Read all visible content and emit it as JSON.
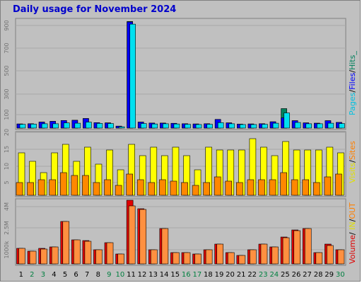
{
  "title": "Daily usage for November 2024",
  "chart_data": [
    {
      "type": "bar",
      "name": "hits-files-pages",
      "categories": [
        "1",
        "2",
        "3",
        "4",
        "5",
        "6",
        "7",
        "8",
        "9",
        "10",
        "11",
        "12",
        "13",
        "14",
        "15",
        "16",
        "17",
        "18",
        "19",
        "20",
        "21",
        "22",
        "23",
        "24",
        "25",
        "26",
        "27",
        "28",
        "29",
        "30"
      ],
      "weekend_days": [
        "2",
        "3",
        "9",
        "10",
        "16",
        "17",
        "23",
        "24",
        "30"
      ],
      "ylim": [
        0,
        1000
      ],
      "yticks": [
        "100",
        "300",
        "500",
        "700",
        "900"
      ],
      "legend": [
        "Pages",
        "Files",
        "Hits"
      ],
      "series": [
        {
          "name": "Hits",
          "color": "#00805c",
          "values": [
            38,
            40,
            55,
            62,
            70,
            72,
            88,
            50,
            48,
            18,
            985,
            55,
            46,
            46,
            44,
            40,
            38,
            40,
            80,
            48,
            36,
            38,
            40,
            58,
            180,
            68,
            48,
            45,
            68,
            52
          ]
        },
        {
          "name": "Files",
          "color": "#0000ff",
          "values": [
            38,
            40,
            55,
            62,
            70,
            72,
            88,
            50,
            48,
            18,
            980,
            55,
            46,
            46,
            44,
            40,
            38,
            40,
            80,
            48,
            36,
            38,
            40,
            58,
            95,
            68,
            48,
            45,
            68,
            52
          ]
        },
        {
          "name": "Pages",
          "color": "#00e0f0",
          "values": [
            35,
            37,
            40,
            40,
            48,
            45,
            55,
            43,
            42,
            12,
            960,
            42,
            38,
            40,
            38,
            35,
            33,
            35,
            50,
            40,
            33,
            33,
            35,
            45,
            140,
            52,
            40,
            40,
            45,
            42
          ]
        }
      ]
    },
    {
      "type": "bar",
      "name": "visits-sites",
      "ylim": [
        0,
        22
      ],
      "yticks": [
        "5",
        "10",
        "15",
        "20"
      ],
      "legend": [
        "Visits",
        "Sites"
      ],
      "series": [
        {
          "name": "Visits",
          "color": "#ffff00",
          "values": [
            15,
            12,
            8,
            15,
            18,
            12,
            17,
            11,
            16,
            9,
            18,
            14,
            17,
            14,
            17,
            14,
            9,
            17,
            16,
            16,
            16,
            20,
            17,
            14,
            19,
            16,
            16,
            16,
            17,
            15
          ]
        },
        {
          "name": "Sites",
          "color": "#ff8800",
          "values": [
            4.5,
            4.5,
            5.5,
            5.5,
            8,
            7,
            7,
            4.5,
            5.5,
            3.5,
            7.5,
            5.5,
            4.5,
            5.5,
            5,
            4.5,
            3.5,
            4.5,
            6.5,
            5,
            4.5,
            5.5,
            5.5,
            5.5,
            8,
            5.5,
            5.5,
            4.5,
            6.5,
            7.5
          ]
        }
      ]
    },
    {
      "type": "bar",
      "name": "volume",
      "ylim": [
        0,
        4500
      ],
      "yticks": [
        "1000k",
        "2.5M",
        "4M"
      ],
      "legend": [
        "Volume",
        "IN",
        "OUT"
      ],
      "series": [
        {
          "name": "IN",
          "color": "#e00000",
          "values": [
            1100,
            900,
            1100,
            1200,
            3000,
            1700,
            1650,
            1000,
            1500,
            700,
            4500,
            3900,
            1000,
            2500,
            800,
            800,
            700,
            1000,
            1400,
            800,
            600,
            1000,
            1400,
            1200,
            1900,
            2400,
            2500,
            800,
            1400,
            1000
          ]
        },
        {
          "name": "OUT",
          "color": "#ff9040",
          "values": [
            1100,
            900,
            1050,
            1200,
            3000,
            1700,
            1600,
            1000,
            1500,
            700,
            4100,
            3850,
            1000,
            2500,
            800,
            800,
            700,
            1000,
            1400,
            800,
            600,
            1000,
            1400,
            1200,
            1850,
            2350,
            2500,
            800,
            1300,
            1000
          ]
        }
      ]
    }
  ]
}
